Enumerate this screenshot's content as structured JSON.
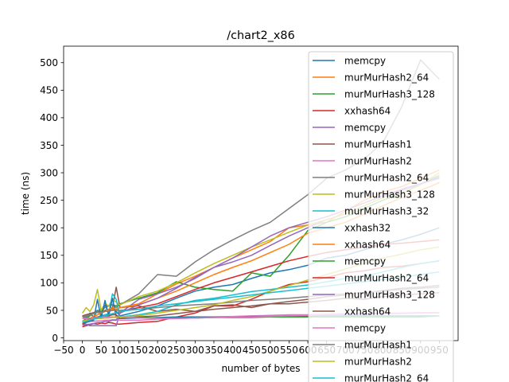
{
  "chart_data": {
    "type": "line",
    "title": "/chart2_x86",
    "xlabel": "number of bytes",
    "ylabel": "time (ns)",
    "xlim": [
      -50,
      1000
    ],
    "ylim": [
      -5,
      530
    ],
    "xticks": [
      -50,
      0,
      50,
      100,
      150,
      200,
      250,
      300,
      350,
      400,
      450,
      500,
      550,
      600,
      650,
      700,
      750,
      800,
      850,
      900,
      950
    ],
    "xtick_labels": [
      "−50",
      "0",
      "50",
      "100",
      "150",
      "200",
      "250",
      "300",
      "350",
      "400",
      "450",
      "500",
      "550",
      "600",
      "650",
      "700",
      "750",
      "800",
      "850",
      "900",
      "950"
    ],
    "yticks": [
      0,
      50,
      100,
      150,
      200,
      250,
      300,
      350,
      400,
      450,
      500
    ],
    "ytick_labels": [
      "0",
      "50",
      "100",
      "150",
      "200",
      "250",
      "300",
      "350",
      "400",
      "450",
      "500"
    ],
    "grid": false,
    "legend_position": "top-right",
    "series": [
      {
        "name": "memcpy",
        "color": "#1f77b4",
        "x": [
          0,
          10,
          20,
          30,
          40,
          50,
          60,
          70,
          80,
          90,
          100,
          150,
          200,
          250,
          300,
          350,
          400,
          450,
          500,
          550,
          600,
          650,
          700,
          750,
          800,
          850,
          900,
          950
        ],
        "y": [
          40,
          35,
          45,
          38,
          50,
          42,
          60,
          45,
          55,
          48,
          40,
          48,
          58,
          72,
          85,
          92,
          97,
          108,
          118,
          124,
          132,
          145,
          150,
          160,
          170,
          178,
          188,
          200
        ]
      },
      {
        "name": "murMurHash2_64",
        "color": "#ff7f0e",
        "x": [
          0,
          10,
          20,
          30,
          40,
          50,
          60,
          70,
          80,
          90,
          100,
          150,
          200,
          250,
          300,
          350,
          400,
          450,
          500,
          550,
          600,
          650,
          700,
          750,
          800,
          850,
          900,
          950
        ],
        "y": [
          25,
          30,
          35,
          38,
          42,
          45,
          48,
          50,
          52,
          50,
          55,
          62,
          80,
          98,
          112,
          128,
          145,
          160,
          175,
          200,
          205,
          210,
          230,
          250,
          265,
          275,
          290,
          305
        ]
      },
      {
        "name": "murMurHash3_128",
        "color": "#2ca02c",
        "x": [
          0,
          10,
          20,
          30,
          40,
          50,
          60,
          70,
          80,
          90,
          100,
          150,
          200,
          250,
          300,
          350,
          400,
          450,
          500,
          550,
          600,
          650,
          700,
          750,
          800,
          850,
          900,
          950
        ],
        "y": [
          30,
          35,
          40,
          45,
          50,
          48,
          55,
          58,
          60,
          58,
          62,
          72,
          82,
          102,
          92,
          88,
          85,
          118,
          112,
          150,
          195,
          210,
          220,
          235,
          250,
          262,
          280,
          295
        ]
      },
      {
        "name": "xxhash64",
        "color": "#d62728",
        "x": [
          0,
          10,
          20,
          30,
          40,
          50,
          60,
          70,
          80,
          90,
          100,
          150,
          200,
          250,
          300,
          350,
          400,
          450,
          500,
          550,
          600,
          650,
          700,
          750,
          800,
          850,
          900,
          950
        ],
        "y": [
          20,
          22,
          24,
          26,
          25,
          27,
          26,
          28,
          27,
          25,
          25,
          28,
          30,
          38,
          45,
          58,
          58,
          70,
          85,
          97,
          102,
          110,
          118,
          122,
          128,
          130,
          135,
          140
        ]
      },
      {
        "name": "memcpy",
        "color": "#9467bd",
        "x": [
          0,
          10,
          20,
          30,
          40,
          50,
          60,
          70,
          80,
          90,
          100,
          150,
          200,
          250,
          300,
          350,
          400,
          450,
          500,
          550,
          600,
          650,
          700,
          750,
          800,
          850,
          900,
          950
        ],
        "y": [
          25,
          25,
          22,
          22,
          22,
          22,
          22,
          22,
          22,
          22,
          45,
          70,
          80,
          92,
          108,
          128,
          138,
          150,
          168,
          185,
          200,
          215,
          225,
          240,
          255,
          268,
          280,
          292
        ]
      },
      {
        "name": "murMurHash1",
        "color": "#8c564b",
        "x": [
          0,
          10,
          20,
          30,
          40,
          50,
          60,
          70,
          80,
          90,
          100,
          150,
          200,
          250,
          300,
          350,
          400,
          450,
          500,
          550,
          600,
          650,
          700,
          750,
          800,
          850,
          900,
          950
        ],
        "y": [
          40,
          42,
          44,
          46,
          48,
          45,
          50,
          52,
          55,
          92,
          55,
          58,
          48,
          52,
          48,
          58,
          60,
          55,
          62,
          62,
          65,
          68,
          72,
          70,
          75,
          78,
          80,
          82
        ]
      },
      {
        "name": "murMurHash2",
        "color": "#e377c2",
        "x": [
          0,
          10,
          20,
          30,
          40,
          50,
          60,
          70,
          80,
          90,
          100,
          150,
          200,
          250,
          300,
          350,
          400,
          450,
          500,
          550,
          600,
          650,
          700,
          750,
          800,
          850,
          900,
          950
        ],
        "y": [
          28,
          29,
          30,
          30,
          31,
          31,
          32,
          32,
          33,
          33,
          32,
          32,
          34,
          35,
          36,
          38,
          39,
          40,
          41,
          42,
          42,
          43,
          44,
          44,
          45,
          45,
          46,
          46
        ]
      },
      {
        "name": "murMurHash2_64",
        "color": "#7f7f7f",
        "x": [
          0,
          10,
          20,
          30,
          40,
          50,
          60,
          70,
          80,
          90,
          100,
          150,
          200,
          250,
          300,
          350,
          400,
          450,
          500,
          550,
          600,
          650,
          700,
          750,
          800,
          850,
          900,
          950
        ],
        "y": [
          35,
          38,
          42,
          45,
          48,
          52,
          55,
          58,
          60,
          55,
          60,
          80,
          115,
          112,
          138,
          160,
          178,
          195,
          210,
          235,
          260,
          290,
          305,
          325,
          355,
          420,
          505,
          470
        ]
      },
      {
        "name": "murMurHash3_128",
        "color": "#bcbd22",
        "x": [
          0,
          10,
          20,
          30,
          40,
          50,
          60,
          70,
          80,
          90,
          100,
          150,
          200,
          250,
          300,
          350,
          400,
          450,
          500,
          550,
          600,
          650,
          700,
          750,
          800,
          850,
          900,
          950
        ],
        "y": [
          45,
          55,
          48,
          60,
          88,
          50,
          62,
          58,
          70,
          65,
          60,
          75,
          85,
          100,
          118,
          135,
          150,
          165,
          178,
          192,
          205,
          215,
          225,
          240,
          255,
          262,
          278,
          300
        ]
      },
      {
        "name": "murMurHash3_32",
        "color": "#17becf",
        "x": [
          0,
          10,
          20,
          30,
          40,
          50,
          60,
          70,
          80,
          90,
          100,
          150,
          200,
          250,
          300,
          350,
          400,
          450,
          500,
          550,
          600,
          650,
          700,
          750,
          800,
          850,
          900,
          950
        ],
        "y": [
          30,
          32,
          34,
          36,
          38,
          40,
          42,
          44,
          80,
          70,
          38,
          42,
          48,
          60,
          68,
          72,
          78,
          84,
          88,
          92,
          96,
          102,
          108,
          112,
          120,
          128,
          135,
          140
        ]
      },
      {
        "name": "xxhash32",
        "color": "#1f77b4",
        "x": [
          0,
          10,
          20,
          30,
          40,
          50,
          60,
          70,
          80,
          90,
          100,
          150,
          200,
          250,
          300,
          350,
          400,
          450,
          500,
          550,
          600,
          650,
          700,
          750,
          800,
          850,
          900,
          950
        ],
        "y": [
          25,
          28,
          30,
          32,
          70,
          35,
          68,
          40,
          72,
          38,
          35,
          36,
          37,
          38,
          38,
          38,
          38,
          39,
          39,
          40,
          40,
          40,
          40,
          40,
          40,
          40,
          40,
          40
        ]
      },
      {
        "name": "xxhash64",
        "color": "#ff7f0e",
        "x": [
          0,
          10,
          20,
          30,
          40,
          50,
          60,
          70,
          80,
          90,
          100,
          150,
          200,
          250,
          300,
          350,
          400,
          450,
          500,
          550,
          600,
          650,
          700,
          750,
          800,
          850,
          900,
          950
        ],
        "y": [
          30,
          32,
          35,
          40,
          42,
          45,
          48,
          52,
          55,
          52,
          55,
          60,
          72,
          85,
          100,
          115,
          128,
          140,
          155,
          170,
          190,
          200,
          210,
          225,
          240,
          255,
          268,
          282
        ]
      },
      {
        "name": "memcpy",
        "color": "#2ca02c",
        "x": [
          0,
          10,
          20,
          30,
          40,
          50,
          60,
          70,
          80,
          90,
          100,
          150,
          200,
          250,
          300,
          350,
          400,
          450,
          500,
          550,
          600,
          650,
          700,
          750,
          800,
          850,
          900,
          950
        ],
        "y": [
          30,
          32,
          34,
          35,
          36,
          36,
          37,
          38,
          38,
          38,
          38,
          38,
          36,
          36,
          36,
          37,
          37,
          37,
          38,
          38,
          38,
          38,
          38,
          38,
          38,
          38,
          38,
          40
        ]
      },
      {
        "name": "murMurHash2_64",
        "color": "#d62728",
        "x": [
          0,
          10,
          20,
          30,
          40,
          50,
          60,
          70,
          80,
          90,
          100,
          150,
          200,
          250,
          300,
          350,
          400,
          450,
          500,
          550,
          600,
          650,
          700,
          750,
          800,
          850,
          900,
          950
        ],
        "y": [
          25,
          30,
          32,
          34,
          36,
          38,
          40,
          42,
          44,
          45,
          48,
          55,
          62,
          75,
          88,
          100,
          110,
          120,
          130,
          140,
          148,
          155,
          160,
          165,
          170,
          172,
          175,
          178
        ]
      },
      {
        "name": "murMurHash3_128",
        "color": "#9467bd",
        "x": [
          0,
          10,
          20,
          30,
          40,
          50,
          60,
          70,
          80,
          90,
          100,
          150,
          200,
          250,
          300,
          350,
          400,
          450,
          500,
          550,
          600,
          650,
          700,
          750,
          800,
          850,
          900,
          950
        ],
        "y": [
          22,
          24,
          25,
          26,
          28,
          28,
          30,
          30,
          32,
          32,
          45,
          60,
          72,
          90,
          110,
          128,
          145,
          165,
          185,
          200,
          210,
          220,
          232,
          245,
          258,
          270,
          280,
          290
        ]
      },
      {
        "name": "xxhash64",
        "color": "#8c564b",
        "x": [
          0,
          10,
          20,
          30,
          40,
          50,
          60,
          70,
          80,
          90,
          100,
          150,
          200,
          250,
          300,
          350,
          400,
          450,
          500,
          550,
          600,
          650,
          700,
          750,
          800,
          850,
          900,
          950
        ],
        "y": [
          30,
          32,
          35,
          36,
          38,
          38,
          40,
          40,
          42,
          42,
          35,
          38,
          40,
          44,
          48,
          52,
          55,
          58,
          62,
          66,
          70,
          75,
          78,
          82,
          86,
          90,
          92,
          95
        ]
      },
      {
        "name": "memcpy",
        "color": "#e377c2",
        "x": [
          0,
          10,
          20,
          30,
          40,
          50,
          60,
          70,
          80,
          90,
          100,
          150,
          200,
          250,
          300,
          350,
          400,
          450,
          500,
          550,
          600,
          650,
          700,
          750,
          800,
          850,
          900,
          950
        ],
        "y": [
          35,
          35,
          36,
          36,
          37,
          37,
          38,
          38,
          38,
          38,
          38,
          36,
          35,
          35,
          36,
          37,
          38,
          38,
          39,
          40,
          41,
          42,
          42,
          43,
          44,
          44,
          45,
          45
        ]
      },
      {
        "name": "murMurHash1",
        "color": "#7f7f7f",
        "x": [
          0,
          10,
          20,
          30,
          40,
          50,
          60,
          70,
          80,
          90,
          100,
          150,
          200,
          250,
          300,
          350,
          400,
          450,
          500,
          550,
          600,
          650,
          700,
          750,
          800,
          850,
          900,
          950
        ],
        "y": [
          38,
          40,
          42,
          44,
          46,
          46,
          48,
          48,
          50,
          50,
          50,
          52,
          55,
          58,
          60,
          62,
          65,
          68,
          70,
          72,
          75,
          78,
          80,
          82,
          85,
          88,
          90,
          92
        ]
      },
      {
        "name": "murMurHash2",
        "color": "#bcbd22",
        "x": [
          0,
          10,
          20,
          30,
          40,
          50,
          60,
          70,
          80,
          90,
          100,
          150,
          200,
          250,
          300,
          350,
          400,
          450,
          500,
          550,
          600,
          650,
          700,
          750,
          800,
          850,
          900,
          950
        ],
        "y": [
          30,
          32,
          33,
          34,
          35,
          35,
          36,
          36,
          37,
          37,
          38,
          40,
          45,
          50,
          55,
          60,
          68,
          75,
          85,
          95,
          105,
          115,
          125,
          135,
          145,
          152,
          160,
          165
        ]
      },
      {
        "name": "murMurHash2_64",
        "color": "#17becf",
        "x": [
          0,
          10,
          20,
          30,
          40,
          50,
          60,
          70,
          80,
          90,
          100,
          150,
          200,
          250,
          300,
          350,
          400,
          450,
          500,
          550,
          600,
          650,
          700,
          750,
          800,
          850,
          900,
          950
        ],
        "y": [
          28,
          30,
          32,
          34,
          36,
          38,
          40,
          42,
          44,
          46,
          48,
          52,
          58,
          62,
          66,
          70,
          74,
          78,
          82,
          86,
          90,
          94,
          98,
          102,
          106,
          110,
          115,
          120
        ]
      }
    ]
  }
}
